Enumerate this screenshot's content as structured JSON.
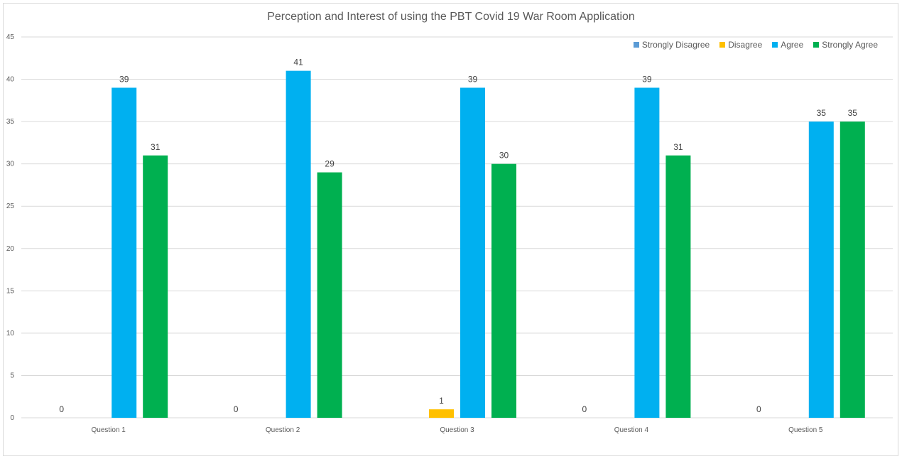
{
  "chart_data": {
    "type": "bar",
    "title": "Perception and Interest of using the PBT Covid 19 War Room Application",
    "xlabel": "",
    "ylabel": "",
    "ylim": [
      0,
      45
    ],
    "yticks": [
      0,
      5,
      10,
      15,
      20,
      25,
      30,
      35,
      40,
      45
    ],
    "grid": true,
    "legend_position": "top-right",
    "categories": [
      "Question 1",
      "Question 2",
      "Question 3",
      "Question 4",
      "Question 5"
    ],
    "series": [
      {
        "name": "Strongly Disagree",
        "color": "#5b9bd5",
        "values": [
          0,
          0,
          0,
          0,
          0
        ],
        "labels": [
          "0",
          "0",
          "",
          "0",
          "0"
        ]
      },
      {
        "name": "Disagree",
        "color": "#ffc000",
        "values": [
          0,
          0,
          1,
          0,
          0
        ],
        "labels": [
          "",
          "",
          "1",
          "",
          ""
        ]
      },
      {
        "name": "Agree",
        "color": "#00b0f0",
        "values": [
          39,
          41,
          39,
          39,
          35
        ],
        "labels": [
          "39",
          "41",
          "39",
          "39",
          "35"
        ]
      },
      {
        "name": "Strongly Agree",
        "color": "#00b050",
        "values": [
          31,
          29,
          30,
          31,
          35
        ],
        "labels": [
          "31",
          "29",
          "30",
          "31",
          "35"
        ]
      }
    ]
  }
}
